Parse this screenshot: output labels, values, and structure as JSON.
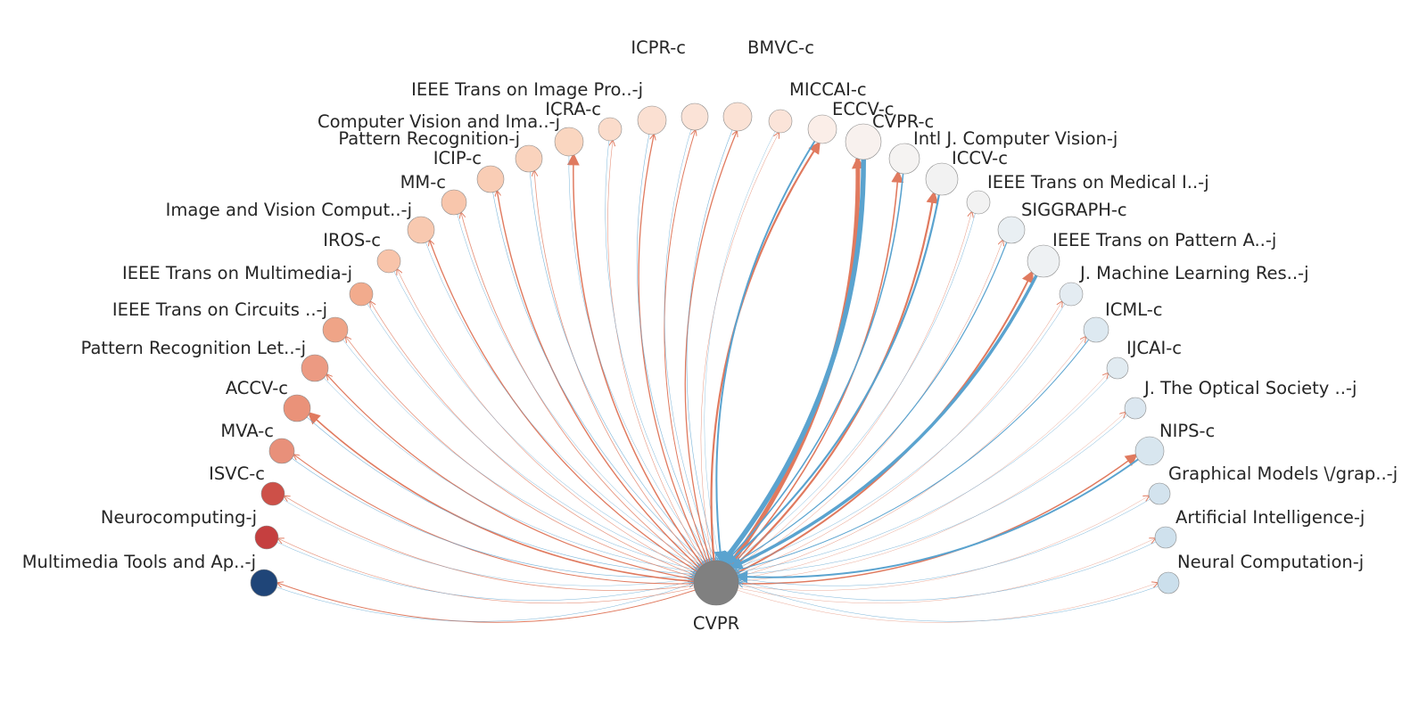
{
  "center": {
    "label": "CVPR",
    "color": "#808080"
  },
  "colors": {
    "red": "#e07a5f",
    "blue": "#5aa3cf"
  },
  "venues": [
    {
      "label": "Multimedia Tools and Ap..-j",
      "fill": "#1f4578"
    },
    {
      "label": "Neurocomputing-j",
      "fill": "#c53f3f"
    },
    {
      "label": "ISVC-c",
      "fill": "#cd5048"
    },
    {
      "label": "MVA-c",
      "fill": "#e8907a"
    },
    {
      "label": "ACCV-c",
      "fill": "#ea9279"
    },
    {
      "label": "Pattern Recognition Let..-j",
      "fill": "#ec9a82"
    },
    {
      "label": "IEEE Trans on Circuits ..-j",
      "fill": "#efa487"
    },
    {
      "label": "IEEE Trans on Multimedia-j",
      "fill": "#f2ab8d"
    },
    {
      "label": "IROS-c",
      "fill": "#f8c4aa"
    },
    {
      "label": "Image and Vision Comput..-j",
      "fill": "#f8c9b0"
    },
    {
      "label": "MM-c",
      "fill": "#f8c6ac"
    },
    {
      "label": "ICIP-c",
      "fill": "#f9cdb5"
    },
    {
      "label": "Pattern Recognition-j",
      "fill": "#fad3bd"
    },
    {
      "label": "Computer Vision and Ima..-j",
      "fill": "#fad6c0"
    },
    {
      "label": "ICRA-c",
      "fill": "#fbdccb"
    },
    {
      "label": "IEEE Trans on Image Pro..-j",
      "fill": "#fbe0d2"
    },
    {
      "label": "ICPR-c",
      "fill": "#fbe3d7"
    },
    {
      "label": "BMVC-c",
      "fill": "#fbe2d5"
    },
    {
      "label": "MICCAI-c",
      "fill": "#fbe4d9"
    },
    {
      "label": "ECCV-c",
      "fill": "#fbeee8"
    },
    {
      "label": "CVPR-c",
      "fill": "#f8f1ee"
    },
    {
      "label": "Intl J. Computer Vision-j",
      "fill": "#f5f3f2"
    },
    {
      "label": "ICCV-c",
      "fill": "#f2f2f2"
    },
    {
      "label": "IEEE Trans on Medical I..-j",
      "fill": "#f2f2f2"
    },
    {
      "label": "SIGGRAPH-c",
      "fill": "#e9eff3"
    },
    {
      "label": "IEEE Trans on Pattern A..-j",
      "fill": "#eef1f3"
    },
    {
      "label": "J. Machine Learning Res..-j",
      "fill": "#e4ecf2"
    },
    {
      "label": "ICML-c",
      "fill": "#dde9f1"
    },
    {
      "label": "IJCAI-c",
      "fill": "#e1ebf1"
    },
    {
      "label": "J. The Optical Society ..-j",
      "fill": "#dbe7f0"
    },
    {
      "label": "NIPS-c",
      "fill": "#d8e6ef"
    },
    {
      "label": "Graphical Models \\/grap..-j",
      "fill": "#d3e3ee"
    },
    {
      "label": "Artificial Intelligence-j",
      "fill": "#cfe1ed"
    },
    {
      "label": "Neural Computation-j",
      "fill": "#cbdfec"
    }
  ]
}
